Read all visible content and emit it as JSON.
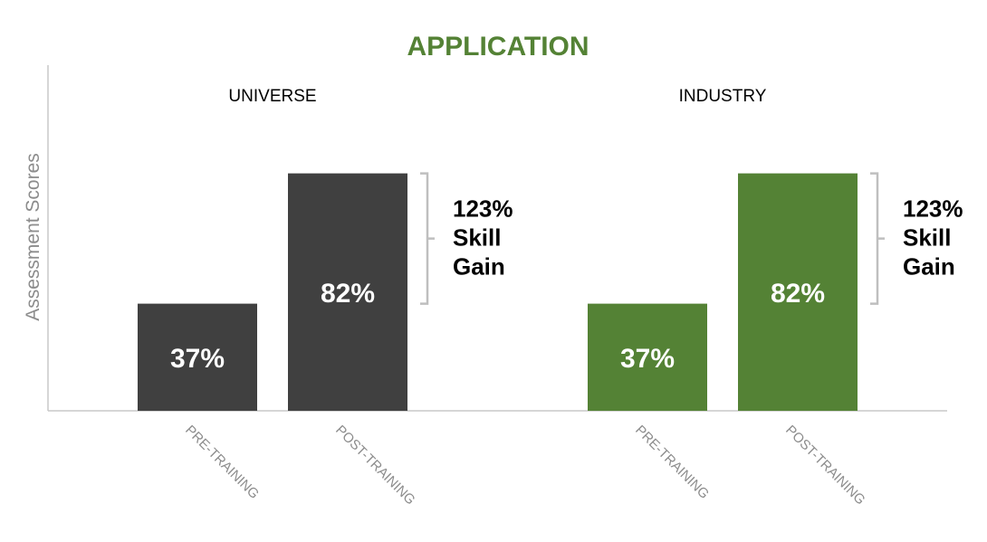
{
  "chart_data": {
    "type": "bar",
    "title": "APPLICATION",
    "ylabel": "Assessment Scores",
    "xlabel": "",
    "ylim": [
      0,
      100
    ],
    "grid": false,
    "legend": "none",
    "categories": [
      "PRE-TRAINING",
      "POST-TRAINING"
    ],
    "groups": [
      {
        "name": "UNIVERSE",
        "values": [
          37,
          82
        ],
        "value_labels": [
          "37%",
          "82%"
        ],
        "color": "#404040",
        "annotation": [
          "123%",
          "Skill",
          "Gain"
        ]
      },
      {
        "name": "INDUSTRY",
        "values": [
          37,
          82
        ],
        "value_labels": [
          "37%",
          "82%"
        ],
        "color": "#548235",
        "annotation": [
          "123%",
          "Skill",
          "Gain"
        ]
      }
    ],
    "colors": {
      "title": "#548235",
      "axis": "#c8c8c8",
      "axis_label": "#8c8c8c",
      "tick_label": "#8c8c8c",
      "bracket": "#bfbfbf",
      "annotation": "#000000",
      "value_label": "#ffffff"
    }
  }
}
